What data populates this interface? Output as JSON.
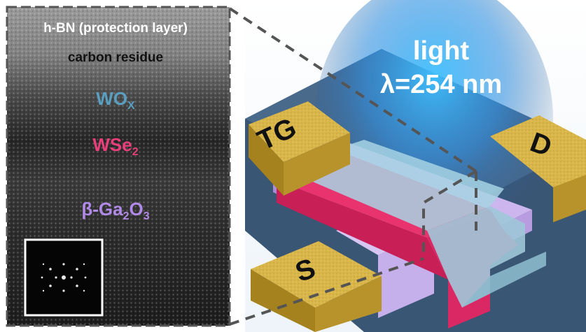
{
  "tem_panel": {
    "layers": [
      {
        "text": "h-BN (protection layer)",
        "color": "#ffffff"
      },
      {
        "text": "carbon residue",
        "color": "#111111"
      },
      {
        "text": "WO",
        "sub": "X",
        "color": "#5a9fc0"
      },
      {
        "text": "WSe",
        "sub": "2",
        "color": "#e83e7a"
      },
      {
        "text": "β-Ga",
        "sub": "2",
        "text2": "O",
        "sub2": "3",
        "color": "#b08ae6"
      }
    ],
    "inset": "fft-pattern"
  },
  "device": {
    "light_label": "light",
    "wavelength_label": "λ=254 nm",
    "pads": {
      "top_gate": "TG",
      "drain": "D",
      "source": "S"
    },
    "colors": {
      "gold": "#d9b64a",
      "wse2": "#e8336f",
      "ga2o3": "#cdb6ee",
      "hbn": "#9ec8d8",
      "substrate": "#3a5675",
      "light": "#3fb8f5"
    }
  }
}
